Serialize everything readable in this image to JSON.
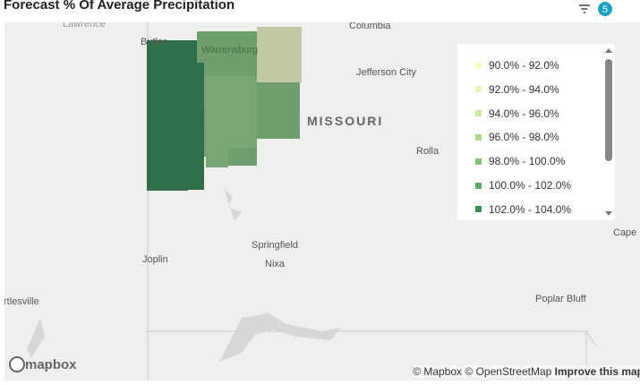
{
  "header": {
    "title": "Forecast % Of Average Precipitation",
    "filter_count": "5"
  },
  "map": {
    "places": [
      "Lawrence",
      "Columbia",
      "Butler",
      "Warrensburg",
      "Jefferson City",
      "MISSOURI",
      "Rolla",
      "Springfield",
      "Joplin",
      "Nixa",
      "Cape",
      "rtlesville",
      "Poplar Bluff"
    ]
  },
  "legend": {
    "items": [
      {
        "label": "90.0% - 92.0%",
        "color": "#fbfbc8"
      },
      {
        "label": "92.0% - 94.0%",
        "color": "#e9f2b8"
      },
      {
        "label": "94.0% - 96.0%",
        "color": "#d0e7a4"
      },
      {
        "label": "96.0% - 98.0%",
        "color": "#afd58e"
      },
      {
        "label": "98.0% - 100.0%",
        "color": "#86c07a"
      },
      {
        "label": "100.0% - 102.0%",
        "color": "#5ca866"
      },
      {
        "label": "102.0% - 104.0%",
        "color": "#3b8d55"
      }
    ]
  },
  "footer": {
    "logo": "mapbox",
    "attribution_1": "© Mapbox",
    "attribution_2": "© OpenStreetMap",
    "improve": "Improve this map"
  }
}
